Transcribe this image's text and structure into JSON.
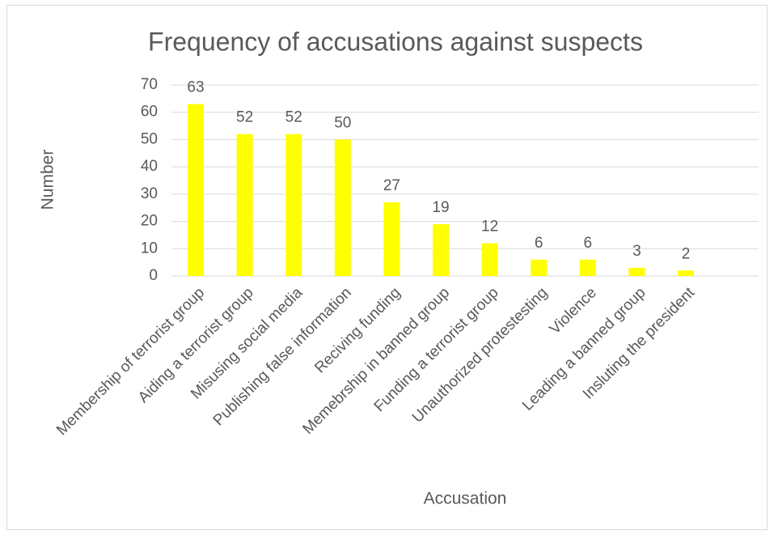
{
  "chart_data": {
    "type": "bar",
    "title": "Frequency of accusations against suspects",
    "x_label": "Accusation",
    "y_label": "Number",
    "categories": [
      "Membership of terrorist group",
      "Aiding a terrorist group",
      "Misusing social media",
      "Publishing false information",
      "Reciving funding",
      "Memebrship in banned group",
      "Funding a terrorist group",
      "Unauthorized protestesting",
      "Violence",
      "Leading a banned group",
      "Insluting the president"
    ],
    "values": [
      63,
      52,
      52,
      50,
      27,
      19,
      12,
      6,
      6,
      3,
      2
    ],
    "color": "#ffff00",
    "ylim": [
      0,
      70
    ],
    "yticks": [
      0,
      10,
      20,
      30,
      40,
      50,
      60,
      70
    ],
    "grid": true
  }
}
